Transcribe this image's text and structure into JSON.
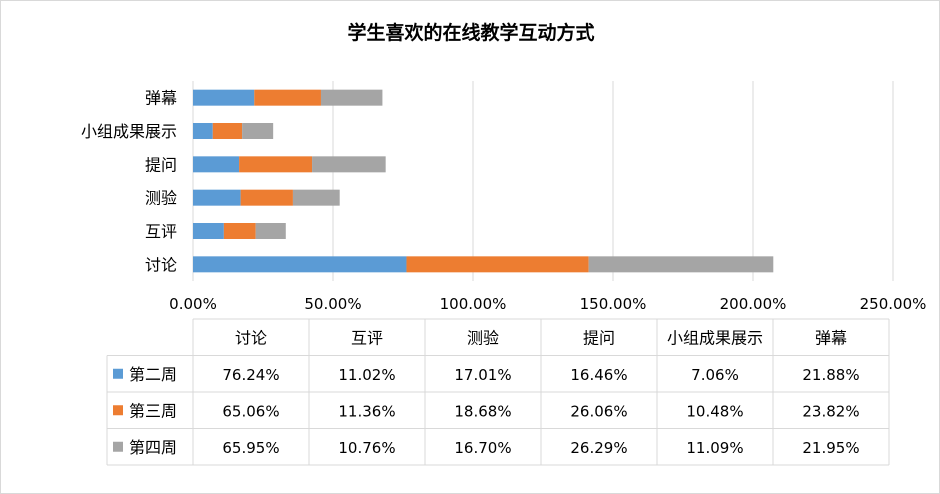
{
  "chart_data": {
    "type": "bar",
    "orientation": "horizontal",
    "stacked": true,
    "title": "学生喜欢的在线教学互动方式",
    "categories": [
      "讨论",
      "互评",
      "测验",
      "提问",
      "小组成果展示",
      "弹幕"
    ],
    "series": [
      {
        "name": "第二周",
        "color": "#5b9bd5",
        "values": [
          76.24,
          11.02,
          17.01,
          16.46,
          7.06,
          21.88
        ]
      },
      {
        "name": "第三周",
        "color": "#ed7d31",
        "values": [
          65.06,
          11.36,
          18.68,
          26.06,
          10.48,
          23.82
        ]
      },
      {
        "name": "第四周",
        "color": "#a5a5a5",
        "values": [
          65.95,
          10.76,
          16.7,
          26.29,
          11.09,
          21.95
        ]
      }
    ],
    "xlim": [
      0,
      250
    ],
    "x_ticks": [
      0,
      50,
      100,
      150,
      200,
      250
    ],
    "x_tick_labels": [
      "0.00%",
      "50.00%",
      "100.00%",
      "150.00%",
      "200.00%",
      "250.00%"
    ],
    "grid": "vertical",
    "legend": "data-table",
    "data_table": {
      "rows": [
        [
          "76.24%",
          "11.02%",
          "17.01%",
          "16.46%",
          "7.06%",
          "21.88%"
        ],
        [
          "65.06%",
          "11.36%",
          "18.68%",
          "26.06%",
          "10.48%",
          "23.82%"
        ],
        [
          "65.95%",
          "10.76%",
          "16.70%",
          "26.29%",
          "11.09%",
          "21.95%"
        ]
      ]
    }
  }
}
